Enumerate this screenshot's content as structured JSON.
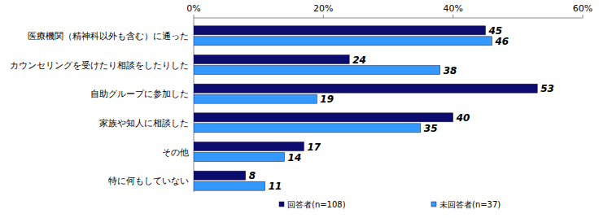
{
  "chart_data": {
    "type": "bar",
    "orientation": "horizontal",
    "categories": [
      "医療機関（精神科以外も含む）に通った",
      "カウンセリングを受けたり相談をしたりした",
      "自助グループに参加した",
      "家族や知人に相談した",
      "その他",
      "特に何もしていない"
    ],
    "series": [
      {
        "name": "回答者(n=108)",
        "color": "#0c0c6e",
        "values": [
          45,
          24,
          53,
          40,
          17,
          8
        ]
      },
      {
        "name": "未回答者(n=37)",
        "color": "#3399ff",
        "values": [
          46,
          38,
          19,
          35,
          14,
          11
        ]
      }
    ],
    "xlim": [
      0,
      60
    ],
    "xticks": [
      {
        "value": 0,
        "label": "0%"
      },
      {
        "value": 20,
        "label": "20%"
      },
      {
        "value": 40,
        "label": "40%"
      },
      {
        "value": 60,
        "label": "60%"
      }
    ],
    "data_labels": true,
    "legend": "bottom",
    "grid": false
  }
}
